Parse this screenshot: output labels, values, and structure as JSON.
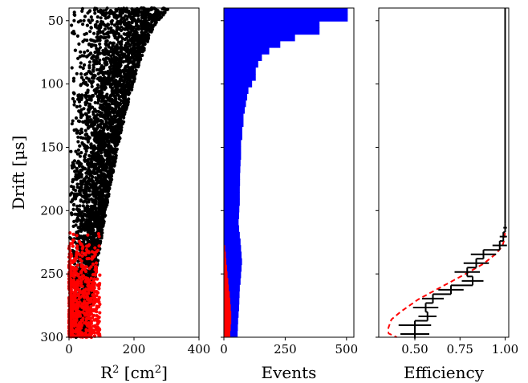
{
  "chart_data": [
    {
      "type": "scatter",
      "xlabel": "R",
      "xlabel_sup": "2",
      "xlabel_unit_open": " [cm",
      "xlabel_unit_sup": "2",
      "xlabel_unit_close": "]",
      "ylabel": "Drift [μs]",
      "xlim": [
        0,
        400
      ],
      "ylim": [
        300,
        40
      ],
      "xticks": [
        0,
        200,
        400
      ],
      "yticks": [
        50,
        100,
        150,
        200,
        250,
        300
      ],
      "series": [
        {
          "color": "#000000",
          "count": 3800,
          "drift_range": [
            40,
            300
          ],
          "r2_max_at_top": 330,
          "r2_max_at_bottom": 55
        },
        {
          "color": "#ff0000",
          "count": 650,
          "drift_range": [
            215,
            300
          ],
          "r2_max": 95
        }
      ]
    },
    {
      "type": "bar",
      "orientation": "horizontal",
      "xlabel": "Events",
      "xlim": [
        0,
        530
      ],
      "ylim": [
        300,
        40
      ],
      "xticks": [
        0,
        250,
        500
      ],
      "bin_edges": [
        40,
        45.2,
        50.4,
        55.6,
        60.8,
        66,
        71.2,
        76.4,
        81.6,
        86.8,
        92,
        97.2,
        102.4,
        107.6,
        112.8,
        118,
        123.2,
        128.4,
        133.6,
        138.8,
        144,
        149.2,
        154.4,
        159.6,
        164.8,
        170,
        175.2,
        180.4,
        185.6,
        190.8,
        196,
        201.2,
        206.4,
        211.6,
        216.8,
        222,
        227.2,
        232.4,
        237.6,
        242.8,
        248,
        253.2,
        258.4,
        263.6,
        268.8,
        274,
        279.2,
        284.4,
        289.6,
        294.8,
        300
      ],
      "series": [
        {
          "color": "#0000ff",
          "values": [
            505,
            505,
            390,
            390,
            290,
            230,
            185,
            155,
            140,
            130,
            130,
            115,
            100,
            95,
            90,
            85,
            80,
            80,
            75,
            75,
            70,
            70,
            70,
            68,
            67,
            66,
            66,
            65,
            65,
            65,
            63,
            62,
            60,
            62,
            65,
            68,
            70,
            72,
            74,
            72,
            70,
            68,
            65,
            64,
            63,
            62,
            60,
            58,
            57,
            56
          ]
        },
        {
          "color": "#ff0000",
          "values": [
            0,
            0,
            0,
            0,
            0,
            0,
            0,
            0,
            0,
            0,
            0,
            0,
            0,
            0,
            0,
            0,
            0,
            0,
            0,
            0,
            0,
            0,
            0,
            0,
            0,
            0,
            0,
            0,
            0,
            0,
            0,
            0,
            0,
            0,
            0,
            0,
            5,
            8,
            10,
            13,
            15,
            18,
            20,
            24,
            26,
            28,
            30,
            30,
            28,
            26
          ]
        }
      ]
    },
    {
      "type": "line",
      "xlabel": "Efficiency",
      "xlim": [
        0.3,
        1.02
      ],
      "ylim": [
        300,
        40
      ],
      "xticks": [
        0.5,
        0.75,
        1.0
      ],
      "xtick_labels": [
        "0.50",
        "0.75",
        "1.00"
      ],
      "measured": {
        "color": "#000000",
        "bins": [
          {
            "y0": 210,
            "y1": 217,
            "x": 1.0,
            "xerr": 0.01
          },
          {
            "y0": 217,
            "y1": 224,
            "x": 0.99,
            "xerr": 0.02
          },
          {
            "y0": 224,
            "y1": 231,
            "x": 0.97,
            "xerr": 0.04
          },
          {
            "y0": 231,
            "y1": 238,
            "x": 0.88,
            "xerr": 0.07
          },
          {
            "y0": 238,
            "y1": 245,
            "x": 0.84,
            "xerr": 0.07
          },
          {
            "y0": 245,
            "y1": 252,
            "x": 0.79,
            "xerr": 0.07
          },
          {
            "y0": 252,
            "y1": 259,
            "x": 0.82,
            "xerr": 0.06
          },
          {
            "y0": 259,
            "y1": 266,
            "x": 0.7,
            "xerr": 0.07
          },
          {
            "y0": 266,
            "y1": 273,
            "x": 0.6,
            "xerr": 0.06
          },
          {
            "y0": 273,
            "y1": 280,
            "x": 0.56,
            "xerr": 0.07
          },
          {
            "y0": 280,
            "y1": 287,
            "x": 0.57,
            "xerr": 0.05
          },
          {
            "y0": 287,
            "y1": 294,
            "x": 0.5,
            "xerr": 0.09
          },
          {
            "y0": 294,
            "y1": 301,
            "x": 0.5,
            "xerr": 0.08
          }
        ]
      },
      "model": {
        "color": "#ff0000",
        "style": "dashed",
        "x": [
          1.0,
          1.0,
          1.0,
          1.0,
          0.997,
          0.985,
          0.95,
          0.88,
          0.78,
          0.65,
          0.52,
          0.42,
          0.37,
          0.36,
          0.35,
          0.355,
          0.4
        ],
        "y": [
          40,
          150,
          200,
          215,
          222,
          228,
          234,
          242,
          250,
          260,
          270,
          280,
          286,
          290,
          294,
          297,
          300
        ]
      }
    }
  ]
}
